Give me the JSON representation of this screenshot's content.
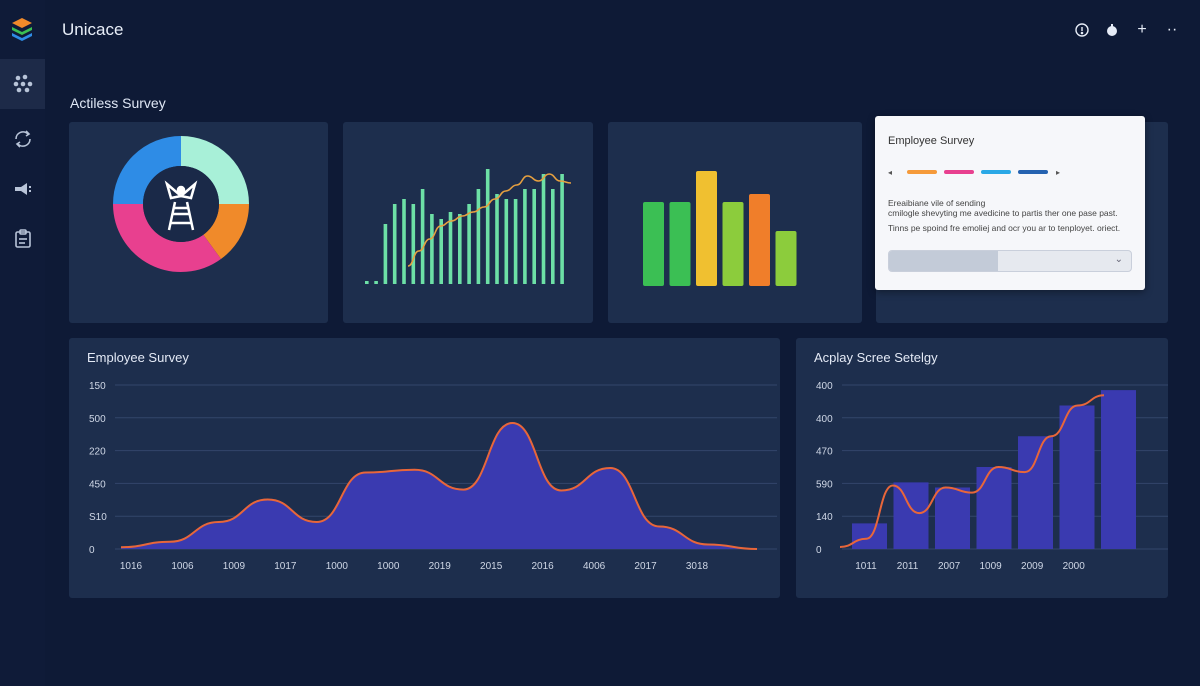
{
  "app": {
    "title": "Unicace"
  },
  "sidebar": {
    "items": [
      {
        "icon": "apps-grid-icon",
        "active": true
      },
      {
        "icon": "refresh-cycle-icon",
        "active": false
      },
      {
        "icon": "megaphone-icon",
        "active": false
      },
      {
        "icon": "clipboard-icon",
        "active": false
      }
    ]
  },
  "header": {
    "icons": [
      "info-icon",
      "notification-icon",
      "add-icon",
      "more-icon"
    ],
    "add_glyph": "+",
    "more_glyph": "··"
  },
  "top_section": {
    "title": "Actiless Survey"
  },
  "survey_popup": {
    "title": "Employee Survey",
    "legend_colors": [
      "#f59a3a",
      "#e8408f",
      "#2aa8e6",
      "#2562b0"
    ],
    "line1": "Ereaibiane vile of sending",
    "line2": "cmilogle shevyting me avedicine to partis ther one pase past.",
    "line3": "Tinns pe spoind fre emoliej and ocr you ar to tenployet. oriect.",
    "select_progress": 0.45
  },
  "colors": {
    "accent_purple": "#3a3ab0",
    "accent_orange": "#e8663a",
    "green_bars": "#6de0a6",
    "trend_line": "#e6a040"
  },
  "chart_data": [
    {
      "type": "pie",
      "values": [
        25,
        15,
        35,
        25
      ],
      "colors": [
        "#a8f0d8",
        "#f08a2a",
        "#e8408f",
        "#2e8ce6"
      ]
    },
    {
      "type": "bar",
      "values": [
        3,
        3,
        60,
        80,
        85,
        80,
        95,
        70,
        65,
        72,
        70,
        80,
        95,
        115,
        90,
        85,
        85,
        95,
        95,
        110,
        95,
        110
      ],
      "line": [
        18,
        33,
        45,
        58,
        63,
        68,
        72,
        77,
        85,
        93,
        99,
        108,
        103,
        110,
        103,
        101
      ],
      "colors": {
        "bars": "#6de0a6",
        "line": "#e6a040"
      }
    },
    {
      "type": "bar",
      "values": [
        84,
        84,
        115,
        84,
        92,
        55
      ],
      "colors": [
        "#3bbf54",
        "#3bbf54",
        "#f0c030",
        "#8ccc3c",
        "#f07e2a",
        "#8ccc3c"
      ]
    },
    {
      "type": "area",
      "title": "Employee Survey",
      "x_labels": [
        "1016",
        "1006",
        "1009",
        "1017",
        "1000",
        "1000",
        "2019",
        "2015",
        "2016",
        "4006",
        "2017",
        "3018"
      ],
      "y_labels": [
        "150",
        "500",
        "220",
        "450",
        "S10",
        "0"
      ],
      "values": [
        2,
        8,
        30,
        55,
        30,
        85,
        88,
        66,
        140,
        65,
        90,
        25,
        5,
        0
      ]
    },
    {
      "type": "bar",
      "title": "Acplay Scree Setelgy",
      "x_labels": [
        "1011",
        "2011",
        "2007",
        "1009",
        "2009",
        "2000"
      ],
      "y_labels": [
        "400",
        "400",
        "470",
        "590",
        "140",
        "0"
      ],
      "bar_values": [
        25,
        65,
        60,
        80,
        110,
        140,
        155
      ],
      "line": [
        2,
        10,
        62,
        35,
        60,
        55,
        80,
        75,
        110,
        140,
        150
      ]
    }
  ]
}
